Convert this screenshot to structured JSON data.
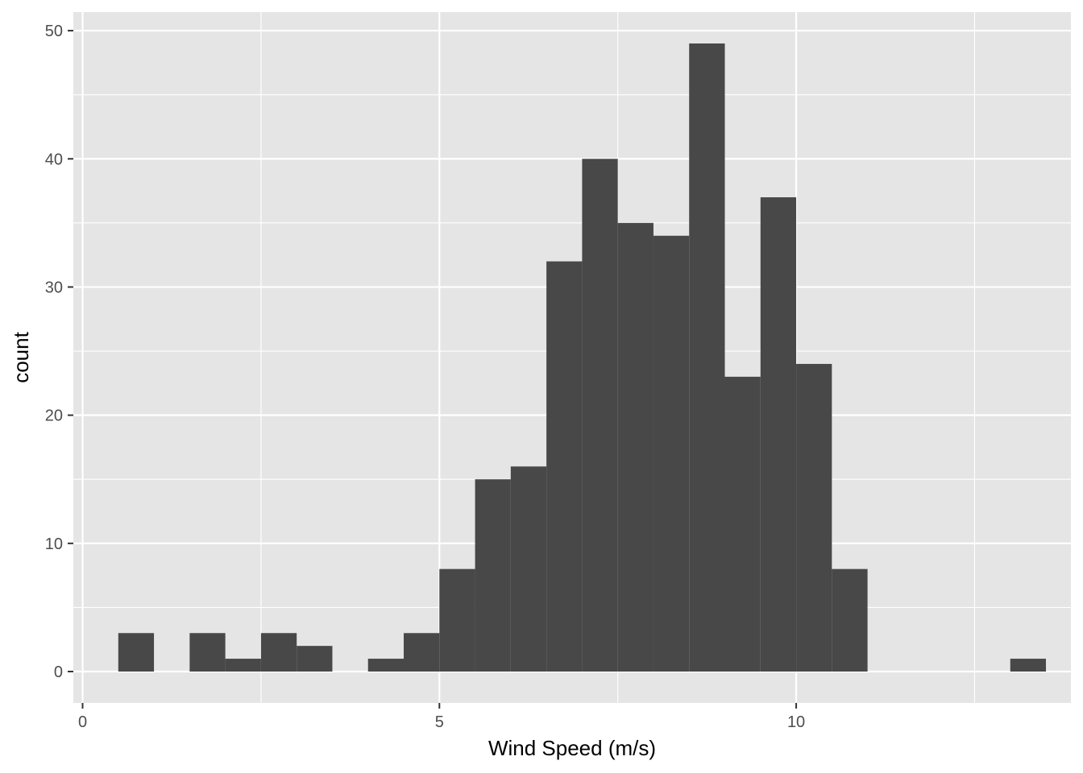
{
  "chart_data": {
    "type": "bar",
    "title": "",
    "xlabel": "Wind Speed (m/s)",
    "ylabel": "count",
    "xlim": [
      -0.13,
      13.85
    ],
    "ylim": [
      -2.45,
      51.45
    ],
    "x_ticks": [
      0,
      5,
      10
    ],
    "y_ticks": [
      0,
      10,
      20,
      30,
      40,
      50
    ],
    "bins": [
      {
        "x0": 0.5,
        "x1": 1.0,
        "count": 3
      },
      {
        "x0": 1.0,
        "x1": 1.5,
        "count": 0
      },
      {
        "x0": 1.5,
        "x1": 2.0,
        "count": 3
      },
      {
        "x0": 2.0,
        "x1": 2.5,
        "count": 1
      },
      {
        "x0": 2.5,
        "x1": 3.0,
        "count": 3
      },
      {
        "x0": 3.0,
        "x1": 3.5,
        "count": 2
      },
      {
        "x0": 3.5,
        "x1": 4.0,
        "count": 0
      },
      {
        "x0": 4.0,
        "x1": 4.5,
        "count": 1
      },
      {
        "x0": 4.5,
        "x1": 5.0,
        "count": 3
      },
      {
        "x0": 5.0,
        "x1": 5.5,
        "count": 8
      },
      {
        "x0": 5.5,
        "x1": 6.0,
        "count": 15
      },
      {
        "x0": 6.0,
        "x1": 6.5,
        "count": 16
      },
      {
        "x0": 6.5,
        "x1": 7.0,
        "count": 32
      },
      {
        "x0": 7.0,
        "x1": 7.5,
        "count": 40
      },
      {
        "x0": 7.5,
        "x1": 8.0,
        "count": 35
      },
      {
        "x0": 8.0,
        "x1": 8.5,
        "count": 34
      },
      {
        "x0": 8.5,
        "x1": 9.0,
        "count": 49
      },
      {
        "x0": 9.0,
        "x1": 9.5,
        "count": 23
      },
      {
        "x0": 9.5,
        "x1": 10.0,
        "count": 37
      },
      {
        "x0": 10.0,
        "x1": 10.5,
        "count": 24
      },
      {
        "x0": 10.5,
        "x1": 11.0,
        "count": 8
      },
      {
        "x0": 11.0,
        "x1": 11.5,
        "count": 0
      },
      {
        "x0": 11.5,
        "x1": 12.0,
        "count": 0
      },
      {
        "x0": 12.0,
        "x1": 12.5,
        "count": 0
      },
      {
        "x0": 12.5,
        "x1": 13.0,
        "count": 0
      },
      {
        "x0": 13.0,
        "x1": 13.5,
        "count": 1
      }
    ],
    "grid": true,
    "legend": "none",
    "colors": {
      "panel": "#e5e5e5",
      "grid": "#ffffff",
      "bar": "#484848",
      "tick_text": "#4d4d4d",
      "axis_title": "#000000"
    }
  }
}
